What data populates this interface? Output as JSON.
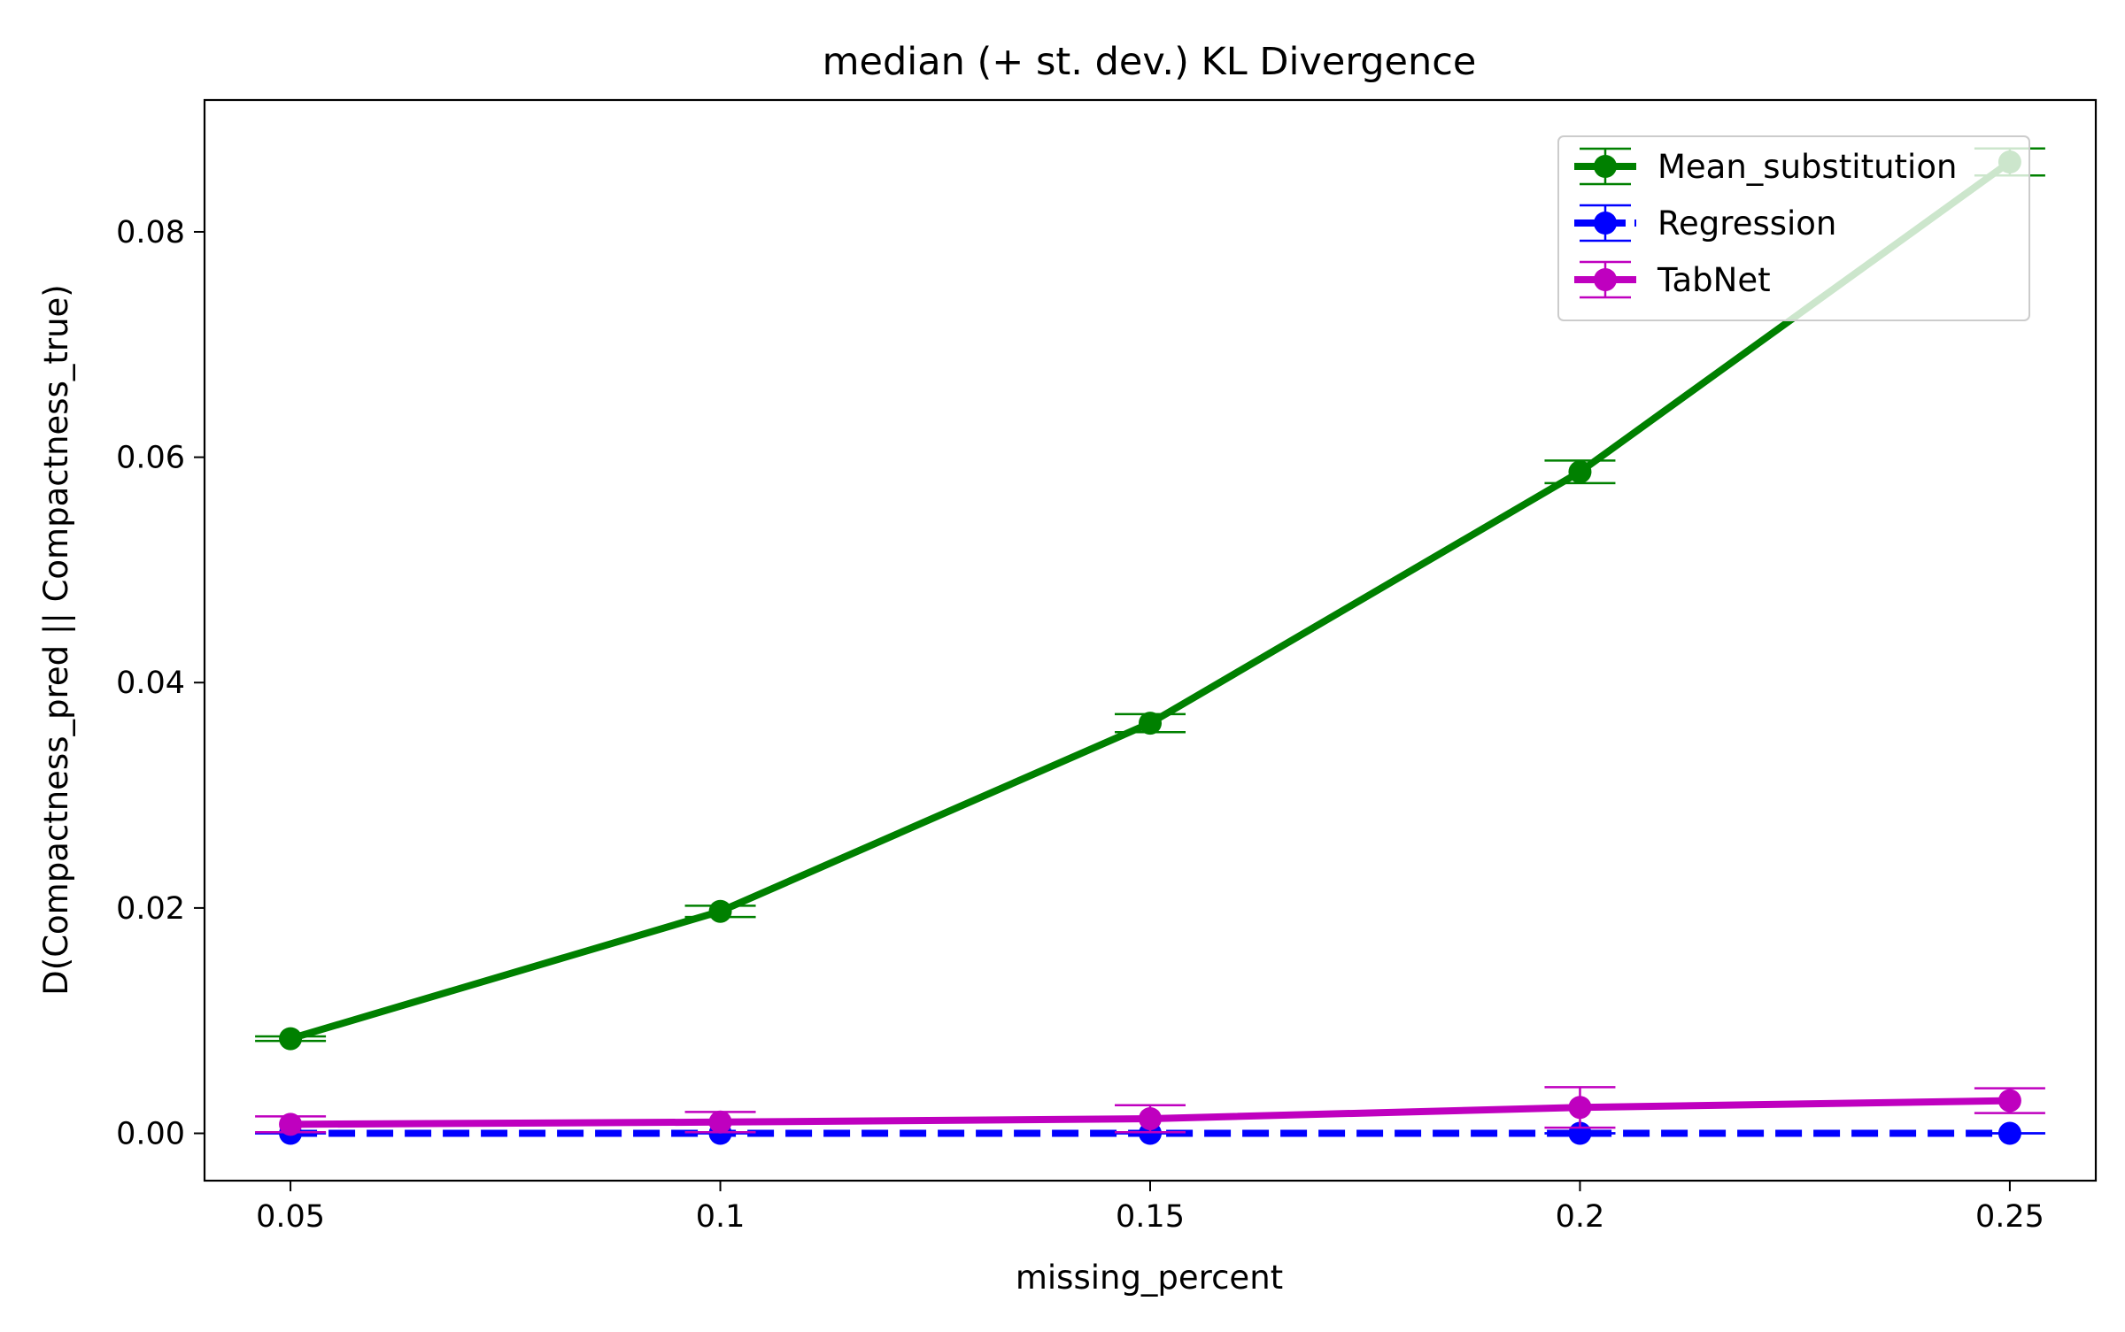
{
  "chart_data": {
    "type": "line",
    "title": "median (+ st. dev.) KL Divergence",
    "xlabel": "missing_percent",
    "ylabel": "D(Compactness_pred || Compactness_true)",
    "x": [
      0.05,
      0.1,
      0.15,
      0.2,
      0.25
    ],
    "x_tick_labels": [
      "0.05",
      "0.1",
      "0.15",
      "0.2",
      "0.25"
    ],
    "xlim": [
      0.04,
      0.26
    ],
    "ylim": [
      -0.0042,
      0.0917
    ],
    "y_ticks": [
      0.0,
      0.02,
      0.04,
      0.06,
      0.08
    ],
    "y_tick_labels": [
      "0.00",
      "0.02",
      "0.04",
      "0.06",
      "0.08"
    ],
    "grid": false,
    "legend_position": "top-right",
    "series": [
      {
        "name": "Mean_substitution",
        "color": "#008000",
        "linestyle": "solid",
        "values": [
          0.0084,
          0.0197,
          0.0364,
          0.0587,
          0.0862
        ],
        "error": [
          0.0002,
          0.0005,
          0.0008,
          0.001,
          0.0012
        ]
      },
      {
        "name": "Regression",
        "color": "#0000ff",
        "linestyle": "dashed",
        "values": [
          0.0,
          0.0,
          0.0,
          0.0,
          0.0
        ],
        "error": [
          0.0,
          0.0,
          0.0,
          0.0,
          0.0
        ]
      },
      {
        "name": "TabNet",
        "color": "#bf00bf",
        "linestyle": "solid",
        "values": [
          0.0008,
          0.001,
          0.0013,
          0.0023,
          0.0029
        ],
        "error": [
          0.0007,
          0.0009,
          0.0012,
          0.0018,
          0.0011
        ]
      }
    ]
  }
}
